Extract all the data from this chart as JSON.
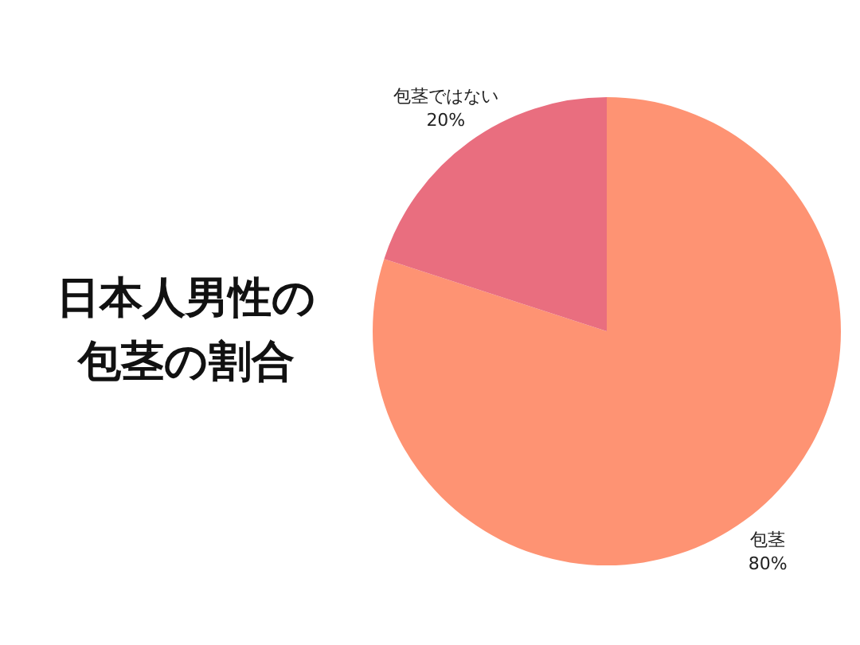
{
  "chart_data": {
    "type": "pie",
    "title": "日本人男性の包茎の割合",
    "categories": [
      "包茎",
      "包茎ではない"
    ],
    "values": [
      80,
      20
    ],
    "value_labels": [
      "80%",
      "20%"
    ],
    "colors": [
      "#fe9373",
      "#e96e7f"
    ],
    "legend": false
  }
}
